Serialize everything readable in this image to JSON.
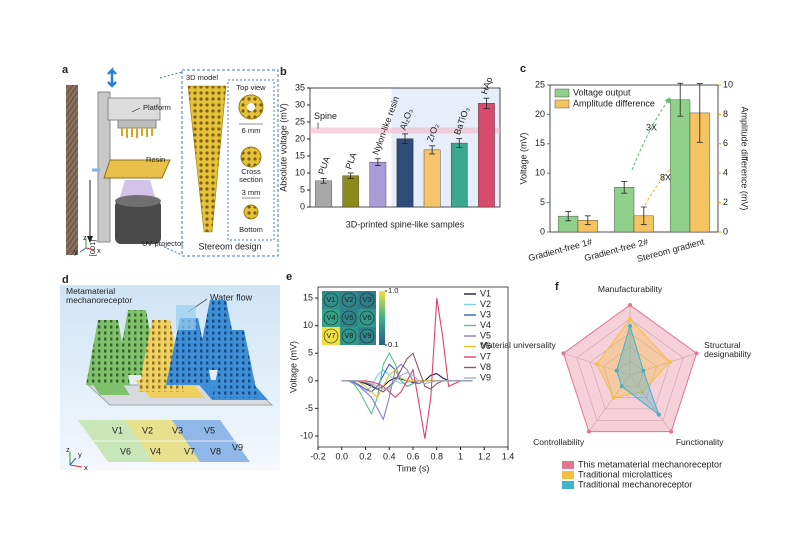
{
  "figure_panels": {
    "a": {
      "label": "a",
      "platform": "Platform",
      "resin": "Resin",
      "uv_projector": "UV projector",
      "model": "3D model",
      "top_view": "Top view",
      "size_top": "6 mm",
      "cross_section": "Cross section",
      "size_bottom": "3 mm",
      "bottom": "Bottom",
      "design": "Stereom design",
      "direction": "[001]",
      "axes": [
        "x",
        "y",
        "z"
      ]
    },
    "d": {
      "label": "d",
      "title": "Metamaterial mechanoreceptor",
      "flow": "Water flow",
      "grid_labels": [
        "V1",
        "V2",
        "V3",
        "V4",
        "V5",
        "V6",
        "V7",
        "V8",
        "V9"
      ],
      "axes": [
        "x",
        "y",
        "z"
      ]
    }
  },
  "chart_data": [
    {
      "type": "bar",
      "panel": "b",
      "categories": [
        "PUA",
        "PLA",
        "Nylon-like resin",
        "Al₂O₃",
        "ZrO₂",
        "BaTiO₃",
        "HAp"
      ],
      "values": [
        7.7,
        9.2,
        13.2,
        20.1,
        16.8,
        18.8,
        30.5
      ],
      "errors": [
        0.7,
        0.8,
        1.0,
        1.4,
        1.2,
        1.3,
        1.5
      ],
      "colors": [
        "#a8a8a8",
        "#8c8a1c",
        "#a99bd6",
        "#2f4b7a",
        "#f5c46c",
        "#3aa98f",
        "#d94b6d"
      ],
      "ylabel": "Absolute voltage (mV)",
      "xlabel": "3D-printed spine-like samples",
      "ylim": [
        0,
        35
      ],
      "yticks": [
        0,
        5,
        10,
        15,
        20,
        25,
        30,
        35
      ],
      "reference": {
        "label": "Spine",
        "value": 22.5
      }
    },
    {
      "type": "bar",
      "panel": "c",
      "categories": [
        "Gradient-free 1#",
        "Gradient-free 2#",
        "Stereom gradient"
      ],
      "series": [
        {
          "name": "Voltage output",
          "color": "#8fd18a",
          "values": [
            2.7,
            7.6,
            22.5
          ],
          "errors": [
            0.8,
            1.0,
            2.8
          ]
        },
        {
          "name": "Amplitude difference",
          "color": "#f5c35f",
          "axis": "y2",
          "values": [
            0.8,
            1.1,
            8.1
          ],
          "errors": [
            0.3,
            0.6,
            2.0
          ]
        }
      ],
      "ylabel": "Voltage (mV)",
      "y2label": "Amplitude difference (mV)",
      "ylim": [
        0,
        25
      ],
      "yticks": [
        0,
        5,
        10,
        15,
        20,
        25
      ],
      "y2lim": [
        0,
        10
      ],
      "y2ticks": [
        0,
        2,
        4,
        6,
        8,
        10
      ],
      "annotations": [
        "3X",
        "8X"
      ]
    },
    {
      "type": "line",
      "panel": "e",
      "x": [
        0,
        0.05,
        0.1,
        0.15,
        0.2,
        0.25,
        0.3,
        0.35,
        0.4,
        0.45,
        0.5,
        0.55,
        0.6,
        0.65,
        0.7,
        0.75,
        0.8,
        0.85,
        0.9,
        0.95,
        1.0,
        1.05,
        1.1
      ],
      "series": [
        {
          "name": "V1",
          "color": "#1c1c4a",
          "values": [
            0,
            0,
            0,
            -0.2,
            -0.5,
            -1,
            -1.5,
            -1,
            0,
            0.5,
            0.3,
            0,
            -0.3,
            -0.5,
            0,
            1,
            1.3,
            0.5,
            0,
            0,
            0,
            0,
            0
          ]
        },
        {
          "name": "V2",
          "color": "#7fd3e8",
          "values": [
            0,
            0,
            -0.3,
            -1,
            -2,
            -1,
            1,
            2,
            1,
            0,
            -0.5,
            -0.3,
            0,
            0,
            0,
            0,
            0,
            0,
            0,
            0,
            0,
            0,
            0
          ]
        },
        {
          "name": "V3",
          "color": "#3a5fcd",
          "values": [
            0,
            0,
            -0.2,
            -0.8,
            -1.5,
            -2,
            -1,
            1,
            3,
            2,
            0,
            -1,
            -0.5,
            0,
            0,
            0,
            0,
            0,
            0,
            0,
            0,
            0,
            0
          ]
        },
        {
          "name": "V4",
          "color": "#5cc08a",
          "values": [
            0,
            0,
            -0.5,
            -2,
            -4,
            -6,
            -3,
            3,
            5,
            3,
            0,
            -1,
            -0.5,
            0,
            0,
            0,
            0,
            0,
            0,
            0,
            0,
            0,
            0
          ]
        },
        {
          "name": "V5",
          "color": "#8a7ad0",
          "values": [
            0,
            0,
            -0.3,
            -1,
            -2,
            -3,
            -5,
            -7,
            -3,
            2,
            3,
            2,
            0,
            -0.5,
            0,
            0,
            0,
            0,
            0,
            0,
            0,
            0,
            0
          ]
        },
        {
          "name": "V6",
          "color": "#e8c030",
          "values": [
            0,
            0,
            0,
            -0.3,
            -1,
            -2,
            -3,
            -1,
            1,
            2,
            0.5,
            0,
            0,
            0,
            0,
            0,
            0,
            0,
            0,
            0,
            0,
            0,
            0
          ]
        },
        {
          "name": "V7",
          "color": "#e0406a",
          "values": [
            0,
            0,
            0,
            0,
            0,
            -0.2,
            -0.5,
            -1,
            -2,
            -3,
            -2,
            0,
            2,
            -4,
            -10.5,
            -3,
            15,
            8,
            -1,
            -0.5,
            0,
            0,
            0
          ]
        },
        {
          "name": "V8",
          "color": "#8a5a5a",
          "values": [
            0,
            0,
            0,
            0,
            -0.3,
            -0.8,
            -1.5,
            -2,
            -1,
            0,
            2,
            4,
            5,
            2,
            -1,
            -1.5,
            -0.5,
            0,
            0,
            0,
            0,
            0,
            0
          ]
        },
        {
          "name": "V9",
          "color": "#a0b0c8",
          "values": [
            0,
            0,
            0,
            0,
            -0.2,
            -0.5,
            -1,
            -1.5,
            -1.5,
            0,
            1,
            1.5,
            1,
            0,
            -0.5,
            -0.3,
            0,
            0,
            0,
            0,
            0,
            0,
            0
          ]
        }
      ],
      "xlabel": "Time (s)",
      "ylabel": "Voltage (mV)",
      "xlim": [
        -0.2,
        1.4
      ],
      "xticks": [
        -0.2,
        {
          "value": 0,
          "label": "0.0"
        },
        0.2,
        0.4,
        0.6,
        0.8,
        1.0,
        1.2,
        1.4
      ],
      "ylim": [
        -12,
        17
      ],
      "yticks": [
        -10,
        -5,
        0,
        5,
        10,
        15
      ],
      "inset": {
        "cells": [
          {
            "label": "V1",
            "value": 0.35
          },
          {
            "label": "V2",
            "value": 0.3
          },
          {
            "label": "V3",
            "value": 0.25
          },
          {
            "label": "V4",
            "value": 0.45
          },
          {
            "label": "V5",
            "value": 0.3
          },
          {
            "label": "V6",
            "value": 0.4
          },
          {
            "label": "V7",
            "value": 1.0
          },
          {
            "label": "V8",
            "value": 0.4
          },
          {
            "label": "V9",
            "value": 0.3
          }
        ],
        "clim": [
          0.1,
          1.0
        ],
        "cticks": [
          {
            "value": 1.0,
            "label": "1.0"
          },
          0.1
        ]
      }
    },
    {
      "type": "radar",
      "panel": "f",
      "axes": [
        "Manufacturability",
        "Structural designability",
        "Functionality",
        "Controllability",
        "Material universality"
      ],
      "series": [
        {
          "name": "This metamaterial mechanoreceptor",
          "color": "#e3778f",
          "values": [
            5,
            5,
            5,
            5,
            5
          ]
        },
        {
          "name": "Traditional microlattices",
          "color": "#f5c040",
          "values": [
            4,
            3,
            1.5,
            2,
            2.5
          ]
        },
        {
          "name": "Traditional mechanoreceptor",
          "color": "#3fb3c8",
          "values": [
            3.5,
            1,
            3.5,
            1,
            1
          ]
        }
      ],
      "rlim": [
        0,
        5
      ],
      "rticks": [
        1,
        2,
        3,
        4,
        5
      ]
    }
  ]
}
